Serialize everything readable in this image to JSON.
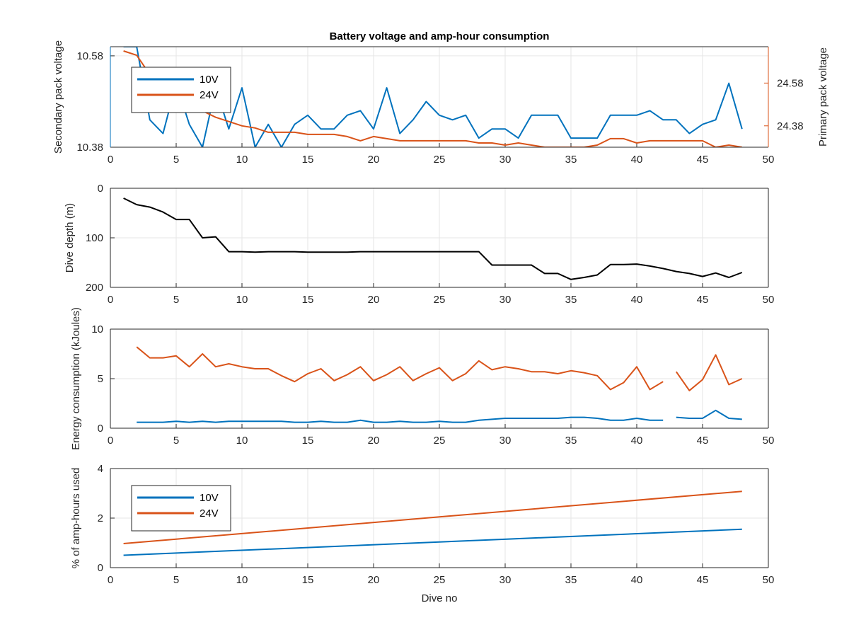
{
  "chart_data": [
    {
      "type": "line",
      "title": "Battery voltage and amp-hour consumption",
      "ylabel": "Secondary pack voltage",
      "ylabel_right": "Primary pack voltage",
      "xlim": [
        0,
        50
      ],
      "ylim": [
        10.38,
        10.6
      ],
      "ylim_right": [
        24.28,
        24.75
      ],
      "xticks": [
        "0",
        "5",
        "10",
        "15",
        "20",
        "25",
        "30",
        "35",
        "40",
        "45",
        "50"
      ],
      "yticks": [
        "10.38",
        "10.58"
      ],
      "yticks_right": [
        "24.38",
        "24.58"
      ],
      "grid": true,
      "legend_position": "top-left",
      "series": [
        {
          "name": "10V",
          "axis": "left",
          "color": "#0072BD",
          "x": [
            1,
            2,
            3,
            4,
            5,
            6,
            7,
            8,
            9,
            10,
            11,
            12,
            13,
            14,
            15,
            16,
            17,
            18,
            19,
            20,
            21,
            22,
            23,
            24,
            25,
            26,
            27,
            28,
            29,
            30,
            31,
            32,
            33,
            34,
            35,
            36,
            37,
            38,
            39,
            40,
            41,
            42,
            43,
            44,
            45,
            46,
            47,
            48
          ],
          "y": [
            10.6,
            10.6,
            10.44,
            10.41,
            10.52,
            10.43,
            10.38,
            10.51,
            10.42,
            10.51,
            10.38,
            10.43,
            10.38,
            10.43,
            10.45,
            10.42,
            10.42,
            10.45,
            10.46,
            10.42,
            10.51,
            10.41,
            10.44,
            10.48,
            10.45,
            10.44,
            10.45,
            10.4,
            10.42,
            10.42,
            10.4,
            10.45,
            10.45,
            10.45,
            10.4,
            10.4,
            10.4,
            10.45,
            10.45,
            10.45,
            10.46,
            10.44,
            10.44,
            10.41,
            10.43,
            10.44,
            10.52,
            10.42
          ]
        },
        {
          "name": "24V",
          "axis": "right",
          "color": "#D95319",
          "x": [
            1,
            2,
            3,
            4,
            5,
            6,
            7,
            8,
            9,
            10,
            11,
            12,
            13,
            14,
            15,
            16,
            17,
            18,
            19,
            20,
            21,
            22,
            23,
            24,
            25,
            26,
            27,
            28,
            29,
            30,
            31,
            32,
            33,
            34,
            35,
            36,
            37,
            38,
            39,
            40,
            41,
            42,
            43,
            44,
            45,
            46,
            47,
            48
          ],
          "y": [
            24.73,
            24.71,
            24.62,
            24.55,
            24.5,
            24.47,
            24.45,
            24.42,
            24.4,
            24.38,
            24.37,
            24.35,
            24.35,
            24.35,
            24.34,
            24.34,
            24.34,
            24.33,
            24.31,
            24.33,
            24.32,
            24.31,
            24.31,
            24.31,
            24.31,
            24.31,
            24.31,
            24.3,
            24.3,
            24.29,
            24.3,
            24.29,
            24.28,
            24.28,
            24.28,
            24.28,
            24.29,
            24.32,
            24.32,
            24.3,
            24.31,
            24.31,
            24.31,
            24.31,
            24.31,
            24.28,
            24.29,
            24.28
          ]
        }
      ]
    },
    {
      "type": "line",
      "ylabel": "Dive depth (m)",
      "xlim": [
        0,
        50
      ],
      "ylim": [
        0,
        200
      ],
      "y_reversed": true,
      "xticks": [
        "0",
        "5",
        "10",
        "15",
        "20",
        "25",
        "30",
        "35",
        "40",
        "45",
        "50"
      ],
      "yticks": [
        "0",
        "100",
        "200"
      ],
      "grid": true,
      "series": [
        {
          "color": "#000000",
          "x": [
            1,
            2,
            3,
            4,
            5,
            6,
            7,
            8,
            9,
            10,
            11,
            12,
            13,
            14,
            15,
            16,
            17,
            18,
            19,
            20,
            21,
            22,
            23,
            24,
            25,
            26,
            27,
            28,
            29,
            30,
            31,
            32,
            33,
            34,
            35,
            36,
            37,
            38,
            39,
            40,
            41,
            42,
            43,
            44,
            45,
            46,
            47,
            48
          ],
          "y": [
            20,
            33,
            38,
            48,
            63,
            63,
            100,
            98,
            128,
            128,
            129,
            128,
            128,
            128,
            129,
            129,
            129,
            129,
            128,
            128,
            128,
            128,
            128,
            128,
            128,
            128,
            128,
            128,
            155,
            155,
            155,
            155,
            172,
            172,
            184,
            180,
            175,
            154,
            154,
            153,
            157,
            162,
            168,
            172,
            178,
            171,
            180,
            170
          ]
        }
      ]
    },
    {
      "type": "line",
      "ylabel": "Energy consumption (kJoules)",
      "xlim": [
        0,
        50
      ],
      "ylim": [
        0,
        10
      ],
      "xticks": [
        "0",
        "5",
        "10",
        "15",
        "20",
        "25",
        "30",
        "35",
        "40",
        "45",
        "50"
      ],
      "yticks": [
        "0",
        "5",
        "10"
      ],
      "grid": true,
      "series": [
        {
          "color": "#0072BD",
          "x": [
            2,
            3,
            4,
            5,
            6,
            7,
            8,
            9,
            10,
            11,
            12,
            13,
            14,
            15,
            16,
            17,
            18,
            19,
            20,
            21,
            22,
            23,
            24,
            25,
            26,
            27,
            28,
            29,
            30,
            31,
            32,
            33,
            34,
            35,
            36,
            37,
            38,
            39,
            40,
            41,
            42,
            null,
            43,
            44,
            45,
            46,
            47,
            48
          ],
          "y": [
            0.6,
            0.6,
            0.6,
            0.7,
            0.6,
            0.7,
            0.6,
            0.7,
            0.7,
            0.7,
            0.7,
            0.7,
            0.6,
            0.6,
            0.7,
            0.6,
            0.6,
            0.8,
            0.6,
            0.6,
            0.7,
            0.6,
            0.6,
            0.7,
            0.6,
            0.6,
            0.8,
            0.9,
            1,
            1,
            1,
            1,
            1,
            1.1,
            1.1,
            1,
            0.8,
            0.8,
            1,
            0.8,
            0.8,
            null,
            1.1,
            1,
            1,
            1.8,
            1,
            0.9
          ]
        },
        {
          "color": "#D95319",
          "x": [
            2,
            3,
            4,
            5,
            6,
            7,
            8,
            9,
            10,
            11,
            12,
            13,
            14,
            15,
            16,
            17,
            18,
            19,
            20,
            21,
            22,
            23,
            24,
            25,
            26,
            27,
            28,
            29,
            30,
            31,
            32,
            33,
            34,
            35,
            36,
            37,
            38,
            39,
            40,
            41,
            42,
            null,
            43,
            44,
            45,
            46,
            47,
            48
          ],
          "y": [
            8.2,
            7.1,
            7.1,
            7.3,
            6.2,
            7.5,
            6.2,
            6.5,
            6.2,
            6,
            6,
            5.3,
            4.7,
            5.5,
            6,
            4.8,
            5.4,
            6.2,
            4.8,
            5.4,
            6.2,
            4.8,
            5.5,
            6.1,
            4.8,
            5.5,
            6.8,
            5.9,
            6.2,
            6,
            5.7,
            5.7,
            5.5,
            5.8,
            5.6,
            5.3,
            3.9,
            4.6,
            6.2,
            3.9,
            4.7,
            null,
            5.7,
            3.8,
            4.9,
            7.4,
            4.4,
            5
          ]
        }
      ]
    },
    {
      "type": "line",
      "xlabel": "Dive no",
      "ylabel": "% of amp-hours used",
      "xlim": [
        0,
        50
      ],
      "ylim": [
        0,
        4
      ],
      "xticks": [
        "0",
        "5",
        "10",
        "15",
        "20",
        "25",
        "30",
        "35",
        "40",
        "45",
        "50"
      ],
      "yticks": [
        "0",
        "2",
        "4"
      ],
      "grid": true,
      "legend_position": "top-left",
      "series": [
        {
          "name": "10V",
          "color": "#0072BD",
          "x": [
            1,
            48
          ],
          "y": [
            0.5,
            1.55
          ]
        },
        {
          "name": "24V",
          "color": "#D95319",
          "x": [
            1,
            48
          ],
          "y": [
            0.97,
            3.08
          ]
        }
      ]
    }
  ]
}
